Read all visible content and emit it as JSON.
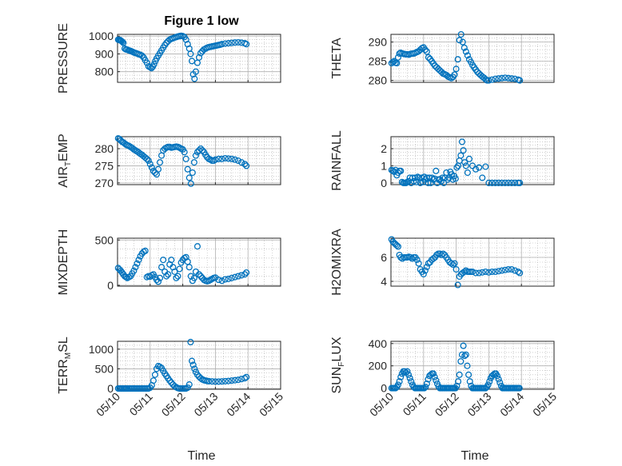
{
  "figure": {
    "title": "Figure 1 low",
    "xlabel": "Time"
  },
  "colors": {
    "marker": "#0072BD",
    "axis": "#262626",
    "grid": "#b0b0b0"
  },
  "chart_data": [
    {
      "type": "scatter",
      "position": "top-left",
      "ylabel": "PRESSURE",
      "xlim": [
        0,
        5
      ],
      "ylim": [
        740,
        1010
      ],
      "yticks": [
        800,
        900,
        1000
      ],
      "xticks": [
        "05/10",
        "05/11",
        "05/12",
        "05/13",
        "05/14",
        "05/15"
      ],
      "show_xticklabels": false,
      "x": [
        0.02,
        0.05,
        0.08,
        0.1,
        0.12,
        0.15,
        0.18,
        0.22,
        0.26,
        0.3,
        0.34,
        0.38,
        0.42,
        0.46,
        0.5,
        0.55,
        0.6,
        0.65,
        0.7,
        0.75,
        0.8,
        0.85,
        0.9,
        0.95,
        1.0,
        1.04,
        1.08,
        1.12,
        1.16,
        1.2,
        1.25,
        1.3,
        1.35,
        1.4,
        1.45,
        1.5,
        1.55,
        1.6,
        1.65,
        1.7,
        1.75,
        1.8,
        1.85,
        1.9,
        1.95,
        2.0,
        2.05,
        2.1,
        2.15,
        2.2,
        2.24,
        2.28,
        2.32,
        2.36,
        2.4,
        2.45,
        2.5,
        2.55,
        2.6,
        2.65,
        2.7,
        2.75,
        2.8,
        2.85,
        2.9,
        2.95,
        3.0,
        3.05,
        3.1,
        3.15,
        3.2,
        3.3,
        3.4,
        3.5,
        3.6,
        3.7,
        3.8,
        3.9,
        3.95
      ],
      "y": [
        980,
        978,
        978,
        975,
        972,
        968,
        962,
        930,
        925,
        924,
        920,
        918,
        915,
        912,
        908,
        905,
        902,
        898,
        895,
        890,
        880,
        865,
        850,
        830,
        825,
        820,
        828,
        842,
        860,
        875,
        890,
        905,
        920,
        935,
        950,
        962,
        972,
        980,
        985,
        988,
        992,
        995,
        998,
        1000,
        1002,
        1000,
        995,
        980,
        955,
        930,
        900,
        860,
        785,
        760,
        800,
        850,
        880,
        905,
        915,
        925,
        930,
        935,
        938,
        940,
        942,
        944,
        946,
        948,
        950,
        952,
        955,
        958,
        960,
        962,
        964,
        965,
        963,
        960,
        955
      ]
    },
    {
      "type": "scatter",
      "position": "top-right",
      "ylabel": "THETA",
      "xlim": [
        0,
        5
      ],
      "ylim": [
        279.5,
        292
      ],
      "yticks": [
        280,
        285,
        290
      ],
      "xticks": [
        "05/10",
        "05/11",
        "05/12",
        "05/13",
        "05/14",
        "05/15"
      ],
      "show_xticklabels": false,
      "x": [
        0.02,
        0.06,
        0.1,
        0.14,
        0.18,
        0.22,
        0.26,
        0.3,
        0.35,
        0.4,
        0.45,
        0.5,
        0.55,
        0.6,
        0.65,
        0.7,
        0.75,
        0.8,
        0.85,
        0.9,
        0.95,
        1.0,
        1.05,
        1.1,
        1.15,
        1.2,
        1.25,
        1.3,
        1.35,
        1.4,
        1.45,
        1.5,
        1.55,
        1.6,
        1.65,
        1.7,
        1.75,
        1.8,
        1.85,
        1.9,
        1.95,
        2.0,
        2.05,
        2.1,
        2.15,
        2.2,
        2.25,
        2.3,
        2.35,
        2.4,
        2.45,
        2.5,
        2.55,
        2.6,
        2.65,
        2.7,
        2.75,
        2.8,
        2.85,
        2.9,
        2.95,
        3.0,
        3.1,
        3.2,
        3.3,
        3.4,
        3.5,
        3.6,
        3.7,
        3.8,
        3.9,
        3.95
      ],
      "y": [
        284.5,
        284.8,
        285,
        284.6,
        284.5,
        286,
        287,
        287.2,
        287,
        286.9,
        286.8,
        286.8,
        286.7,
        286.9,
        287,
        287,
        287.2,
        287.4,
        287.6,
        288,
        288.4,
        288.6,
        288,
        287.5,
        286,
        285.6,
        285,
        284.4,
        283.8,
        283.4,
        283,
        282.6,
        282.2,
        281.8,
        281.6,
        281.4,
        281,
        280.8,
        280.6,
        280.9,
        281.5,
        283,
        285.5,
        290.5,
        292,
        290,
        288.5,
        287.5,
        286.5,
        285.5,
        284.8,
        284,
        283.4,
        282.8,
        282.2,
        281.8,
        281.4,
        281,
        280.7,
        280.3,
        280,
        280,
        280.2,
        280.4,
        280.5,
        280.6,
        280.7,
        280.6,
        280.5,
        280.4,
        280.2,
        280
      ]
    },
    {
      "type": "scatter",
      "position": "row2-left",
      "ylabel": "AIR_T_EMP",
      "xlim": [
        0,
        5
      ],
      "ylim": [
        269.5,
        283.5
      ],
      "yticks": [
        270,
        275,
        280
      ],
      "xticks": [
        "05/10",
        "05/11",
        "05/12",
        "05/13",
        "05/14",
        "05/15"
      ],
      "show_xticklabels": false,
      "x": [
        0.02,
        0.06,
        0.1,
        0.14,
        0.18,
        0.22,
        0.26,
        0.3,
        0.35,
        0.4,
        0.45,
        0.5,
        0.55,
        0.6,
        0.65,
        0.7,
        0.75,
        0.8,
        0.85,
        0.9,
        0.95,
        1.0,
        1.05,
        1.1,
        1.15,
        1.2,
        1.25,
        1.3,
        1.35,
        1.4,
        1.45,
        1.5,
        1.55,
        1.6,
        1.65,
        1.7,
        1.75,
        1.8,
        1.85,
        1.9,
        1.95,
        2.0,
        2.05,
        2.1,
        2.15,
        2.2,
        2.25,
        2.3,
        2.35,
        2.4,
        2.45,
        2.5,
        2.55,
        2.6,
        2.65,
        2.7,
        2.75,
        2.8,
        2.85,
        2.9,
        2.95,
        3.0,
        3.1,
        3.2,
        3.3,
        3.4,
        3.5,
        3.6,
        3.7,
        3.8,
        3.9,
        3.95
      ],
      "y": [
        283,
        282.8,
        282.4,
        282,
        281.8,
        281.5,
        281.2,
        281,
        280.8,
        280.5,
        280.2,
        279.8,
        279.5,
        279.2,
        278.9,
        278.5,
        278.2,
        277.8,
        277.4,
        277,
        276.5,
        275.5,
        274.5,
        273.5,
        273,
        272.5,
        274,
        276,
        278,
        279.5,
        280,
        280.3,
        280.5,
        280.5,
        280.3,
        280.4,
        280.5,
        280.6,
        280.5,
        280.3,
        280,
        279.8,
        279,
        277,
        274,
        271.5,
        269.8,
        273,
        276,
        278,
        279,
        279.5,
        280,
        279.5,
        279,
        278.2,
        277.5,
        277,
        276.8,
        276.5,
        276.5,
        276.8,
        277,
        277,
        277.2,
        277.1,
        277,
        276.8,
        276.5,
        276,
        275.5,
        275
      ]
    },
    {
      "type": "scatter",
      "position": "row2-right",
      "ylabel": "RAINFALL",
      "xlim": [
        0,
        5
      ],
      "ylim": [
        -0.1,
        2.7
      ],
      "yticks": [
        0,
        1,
        2
      ],
      "xticks": [
        "05/10",
        "05/11",
        "05/12",
        "05/13",
        "05/14",
        "05/15"
      ],
      "show_xticklabels": false,
      "x": [
        0.02,
        0.06,
        0.1,
        0.14,
        0.18,
        0.22,
        0.26,
        0.3,
        0.34,
        0.38,
        0.42,
        0.46,
        0.5,
        0.54,
        0.58,
        0.62,
        0.66,
        0.7,
        0.74,
        0.78,
        0.82,
        0.86,
        0.9,
        0.94,
        0.98,
        1.02,
        1.06,
        1.1,
        1.14,
        1.18,
        1.22,
        1.26,
        1.3,
        1.34,
        1.38,
        1.42,
        1.46,
        1.5,
        1.54,
        1.58,
        1.62,
        1.66,
        1.7,
        1.74,
        1.78,
        1.82,
        1.86,
        1.9,
        1.94,
        1.98,
        2.02,
        2.06,
        2.1,
        2.14,
        2.18,
        2.22,
        2.26,
        2.3,
        2.35,
        2.4,
        2.5,
        2.6,
        2.7,
        2.8,
        2.9,
        3.0,
        3.1,
        3.2,
        3.3,
        3.4,
        3.5,
        3.6,
        3.7,
        3.8,
        3.9,
        3.95
      ],
      "y": [
        0.75,
        0.7,
        0.65,
        0.75,
        0.45,
        0.6,
        0.7,
        0.7,
        0.05,
        0,
        0,
        0,
        0.05,
        0.1,
        0.3,
        0,
        0.3,
        0.1,
        0.3,
        0.05,
        0.35,
        0.3,
        0,
        0.3,
        0.05,
        0.35,
        0.2,
        0.3,
        0,
        0.3,
        0,
        0.3,
        0.2,
        0.25,
        0.7,
        0,
        0.2,
        0.2,
        0.1,
        0.3,
        0,
        0.3,
        0.6,
        0.2,
        0.3,
        0.65,
        0.5,
        0.2,
        0.4,
        0.25,
        0.9,
        1.0,
        1.3,
        1.6,
        2.4,
        1.9,
        1.2,
        1.0,
        0.6,
        1.4,
        1.0,
        0.8,
        0.9,
        0.3,
        0.95,
        0,
        0,
        0,
        0,
        0,
        0,
        0,
        0,
        0,
        0,
        0
      ]
    },
    {
      "type": "scatter",
      "position": "row3-left",
      "ylabel": "MIXDEPTH",
      "xlim": [
        0,
        5
      ],
      "ylim": [
        -10,
        520
      ],
      "yticks": [
        0,
        500
      ],
      "xticks": [
        "05/10",
        "05/11",
        "05/12",
        "05/13",
        "05/14",
        "05/15"
      ],
      "show_xticklabels": false,
      "x": [
        0.02,
        0.06,
        0.1,
        0.14,
        0.18,
        0.22,
        0.26,
        0.3,
        0.35,
        0.4,
        0.45,
        0.5,
        0.55,
        0.6,
        0.65,
        0.7,
        0.75,
        0.8,
        0.85,
        0.9,
        0.95,
        1.0,
        1.05,
        1.1,
        1.15,
        1.2,
        1.25,
        1.3,
        1.35,
        1.4,
        1.45,
        1.5,
        1.55,
        1.6,
        1.65,
        1.7,
        1.75,
        1.8,
        1.85,
        1.9,
        1.95,
        2.0,
        2.05,
        2.1,
        2.15,
        2.2,
        2.25,
        2.3,
        2.35,
        2.4,
        2.45,
        2.5,
        2.55,
        2.6,
        2.65,
        2.7,
        2.75,
        2.8,
        2.85,
        2.9,
        2.95,
        3.0,
        3.1,
        3.2,
        3.3,
        3.4,
        3.5,
        3.6,
        3.7,
        3.8,
        3.9,
        3.95
      ],
      "y": [
        190,
        175,
        160,
        140,
        120,
        100,
        90,
        80,
        90,
        100,
        130,
        160,
        200,
        240,
        280,
        320,
        350,
        370,
        380,
        90,
        100,
        95,
        110,
        120,
        90,
        60,
        40,
        80,
        200,
        280,
        150,
        100,
        120,
        230,
        280,
        200,
        150,
        80,
        100,
        180,
        250,
        280,
        300,
        310,
        260,
        200,
        100,
        50,
        80,
        150,
        430,
        120,
        100,
        80,
        60,
        50,
        45,
        50,
        60,
        70,
        80,
        85,
        60,
        50,
        65,
        70,
        80,
        90,
        100,
        110,
        120,
        140
      ]
    },
    {
      "type": "scatter",
      "position": "row3-right",
      "ylabel": "H2OMIXRA",
      "xlim": [
        0,
        5
      ],
      "ylim": [
        3.6,
        7.6
      ],
      "yticks": [
        4,
        6
      ],
      "xticks": [
        "05/10",
        "05/11",
        "05/12",
        "05/13",
        "05/14",
        "05/15"
      ],
      "show_xticklabels": false,
      "x": [
        0.02,
        0.06,
        0.1,
        0.14,
        0.18,
        0.22,
        0.26,
        0.3,
        0.35,
        0.4,
        0.45,
        0.5,
        0.55,
        0.6,
        0.65,
        0.7,
        0.75,
        0.8,
        0.85,
        0.9,
        0.95,
        1.0,
        1.05,
        1.1,
        1.15,
        1.2,
        1.25,
        1.3,
        1.35,
        1.4,
        1.45,
        1.5,
        1.55,
        1.6,
        1.65,
        1.7,
        1.75,
        1.8,
        1.85,
        1.9,
        1.95,
        2.0,
        2.05,
        2.1,
        2.15,
        2.2,
        2.25,
        2.3,
        2.35,
        2.4,
        2.45,
        2.5,
        2.6,
        2.7,
        2.8,
        2.9,
        3.0,
        3.1,
        3.2,
        3.3,
        3.4,
        3.5,
        3.6,
        3.7,
        3.8,
        3.9,
        3.95
      ],
      "y": [
        7.5,
        7.3,
        7.2,
        7.1,
        7.0,
        6.9,
        6.2,
        6.0,
        5.9,
        6.0,
        6.0,
        6.0,
        6.05,
        6.0,
        5.9,
        6.0,
        6.0,
        5.8,
        5.5,
        5.0,
        4.8,
        4.6,
        4.9,
        5.2,
        5.5,
        5.6,
        5.8,
        5.9,
        6.0,
        6.2,
        6.3,
        6.3,
        6.2,
        6.3,
        6.2,
        6.0,
        5.8,
        5.6,
        5.5,
        5.4,
        5.5,
        5.0,
        3.7,
        4.4,
        4.6,
        4.7,
        4.8,
        4.9,
        4.8,
        4.8,
        4.8,
        4.8,
        4.7,
        4.7,
        4.75,
        4.8,
        4.75,
        4.8,
        4.8,
        4.85,
        4.9,
        4.95,
        5.0,
        5.0,
        4.9,
        4.8,
        4.7
      ]
    },
    {
      "type": "scatter",
      "position": "bottom-left",
      "ylabel": "TERR_M_SL",
      "xlim": [
        0,
        5
      ],
      "ylim": [
        -20,
        1200
      ],
      "yticks": [
        0,
        500,
        1000
      ],
      "xticks": [
        "05/10",
        "05/11",
        "05/12",
        "05/13",
        "05/14",
        "05/15"
      ],
      "show_xticklabels": true,
      "x": [
        0.02,
        0.06,
        0.1,
        0.14,
        0.18,
        0.22,
        0.26,
        0.3,
        0.35,
        0.4,
        0.45,
        0.5,
        0.55,
        0.6,
        0.65,
        0.7,
        0.75,
        0.8,
        0.85,
        0.9,
        0.95,
        1.0,
        1.05,
        1.1,
        1.15,
        1.2,
        1.25,
        1.3,
        1.35,
        1.4,
        1.45,
        1.5,
        1.55,
        1.6,
        1.65,
        1.7,
        1.75,
        1.8,
        1.85,
        1.9,
        1.95,
        2.0,
        2.05,
        2.1,
        2.15,
        2.2,
        2.24,
        2.28,
        2.32,
        2.36,
        2.4,
        2.45,
        2.5,
        2.55,
        2.6,
        2.65,
        2.7,
        2.75,
        2.8,
        2.9,
        3.0,
        3.1,
        3.2,
        3.3,
        3.4,
        3.5,
        3.6,
        3.7,
        3.8,
        3.9,
        3.95
      ],
      "y": [
        0,
        0,
        0,
        0,
        0,
        0,
        0,
        0,
        0,
        0,
        0,
        0,
        0,
        0,
        0,
        0,
        0,
        0,
        0,
        0,
        0,
        20,
        80,
        200,
        350,
        500,
        570,
        550,
        520,
        450,
        380,
        320,
        260,
        200,
        150,
        100,
        60,
        30,
        10,
        0,
        0,
        0,
        0,
        0,
        20,
        100,
        1180,
        700,
        600,
        500,
        420,
        350,
        300,
        260,
        230,
        210,
        200,
        190,
        185,
        180,
        175,
        175,
        180,
        185,
        190,
        200,
        210,
        220,
        240,
        260,
        290
      ]
    },
    {
      "type": "scatter",
      "position": "bottom-right",
      "ylabel": "SUN_F_LUX",
      "xlim": [
        0,
        5
      ],
      "ylim": [
        -10,
        420
      ],
      "yticks": [
        0,
        200,
        400
      ],
      "xticks": [
        "05/10",
        "05/11",
        "05/12",
        "05/13",
        "05/14",
        "05/15"
      ],
      "show_xticklabels": true,
      "x": [
        0.02,
        0.06,
        0.1,
        0.14,
        0.18,
        0.22,
        0.26,
        0.3,
        0.34,
        0.38,
        0.42,
        0.46,
        0.5,
        0.54,
        0.58,
        0.62,
        0.66,
        0.7,
        0.74,
        0.78,
        0.82,
        0.86,
        0.9,
        0.94,
        0.98,
        1.02,
        1.06,
        1.1,
        1.14,
        1.18,
        1.22,
        1.26,
        1.3,
        1.34,
        1.38,
        1.42,
        1.46,
        1.5,
        1.54,
        1.58,
        1.62,
        1.66,
        1.7,
        1.74,
        1.78,
        1.82,
        1.86,
        1.9,
        1.94,
        1.98,
        2.02,
        2.06,
        2.1,
        2.14,
        2.18,
        2.22,
        2.26,
        2.3,
        2.34,
        2.38,
        2.42,
        2.46,
        2.5,
        2.54,
        2.58,
        2.62,
        2.66,
        2.7,
        2.74,
        2.78,
        2.82,
        2.86,
        2.9,
        2.94,
        2.98,
        3.02,
        3.06,
        3.1,
        3.14,
        3.18,
        3.22,
        3.26,
        3.3,
        3.34,
        3.38,
        3.42,
        3.46,
        3.5,
        3.54,
        3.58,
        3.62,
        3.66,
        3.7,
        3.74,
        3.78,
        3.82,
        3.86,
        3.9,
        3.94
      ],
      "y": [
        0,
        0,
        0,
        0,
        10,
        30,
        60,
        100,
        130,
        150,
        150,
        140,
        150,
        120,
        90,
        60,
        30,
        10,
        0,
        0,
        0,
        0,
        0,
        0,
        0,
        0,
        10,
        40,
        80,
        110,
        120,
        130,
        130,
        100,
        70,
        40,
        15,
        0,
        0,
        0,
        0,
        0,
        0,
        0,
        0,
        0,
        0,
        0,
        0,
        0,
        20,
        60,
        120,
        240,
        300,
        380,
        290,
        300,
        200,
        120,
        60,
        20,
        0,
        0,
        0,
        0,
        0,
        0,
        0,
        0,
        0,
        0,
        0,
        10,
        30,
        60,
        90,
        110,
        120,
        130,
        130,
        110,
        80,
        50,
        20,
        0,
        0,
        0,
        0,
        0,
        0,
        0,
        0,
        0,
        0,
        0,
        0,
        0,
        0
      ]
    }
  ]
}
